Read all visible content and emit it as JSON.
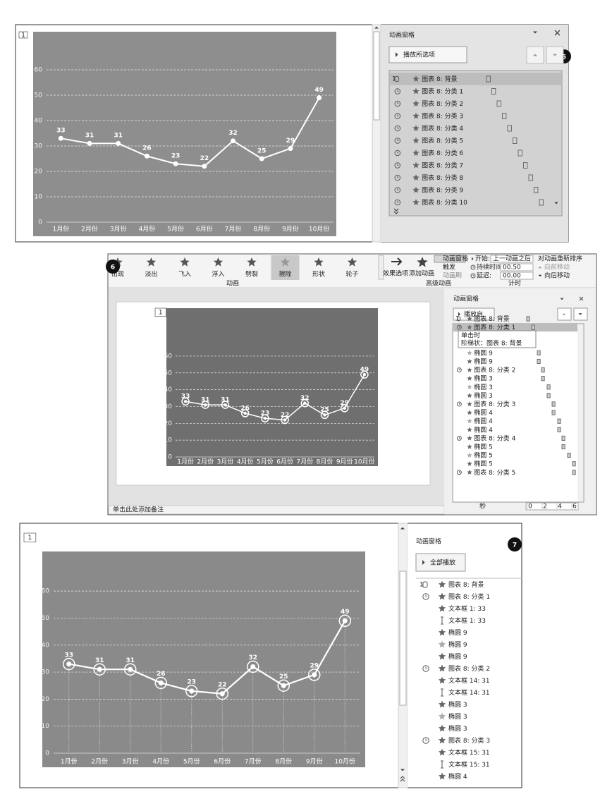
{
  "badges": [
    "5",
    "6",
    "7"
  ],
  "slide_tag": "1",
  "chart": {
    "type": "line",
    "categories": [
      "1月份",
      "2月份",
      "3月份",
      "4月份",
      "5月份",
      "6月份",
      "7月份",
      "8月份",
      "9月份",
      "10月份"
    ],
    "values": [
      33,
      31,
      31,
      26,
      23,
      22,
      32,
      25,
      29,
      49
    ],
    "color": "#ffffff",
    "ylim": [
      0,
      65
    ],
    "yticks": [
      0,
      10,
      20,
      30,
      40,
      50,
      60
    ],
    "grid": true
  },
  "pane5": {
    "title": "动画窗格",
    "play": "播放所选项",
    "order": "1",
    "items": [
      "图表 8: 背景",
      "图表 8: 分类 1",
      "图表 8: 分类 2",
      "图表 8: 分类 3",
      "图表 8: 分类 4",
      "图表 8: 分类 5",
      "图表 8: 分类 6",
      "图表 8: 分类 7",
      "图表 8: 分类 8",
      "图表 8: 分类 9",
      "图表 8: 分类 10"
    ]
  },
  "ribbon": {
    "effects": [
      "出现",
      "淡出",
      "飞入",
      "浮入",
      "劈裂",
      "擦除",
      "形状",
      "轮子"
    ],
    "effect_options": "效果选项",
    "add_animation": "添加动画",
    "anim_pane": "动画窗格",
    "trigger": "触发",
    "painter": "动画刷",
    "start_label": "开始:",
    "start_value": "上一动画之后",
    "duration_label": "持续时间:",
    "duration_value": "00.50",
    "delay_label": "延迟:",
    "delay_value": "00.00",
    "reorder": "对动画重新排序",
    "move_earlier": "向前移动",
    "move_later": "向后移动",
    "groups": [
      "动画",
      "高级动画",
      "计时"
    ]
  },
  "pane6": {
    "title": "动画窗格",
    "play": "播放自",
    "order": "1",
    "items": [
      "图表 8: 背景",
      "图表 8: 分类 1",
      "椭圆 9",
      "椭圆 9",
      "图表 8: 分类 2",
      "椭圆 3",
      "椭圆 3",
      "椭圆 3",
      "图表 8: 分类 3",
      "椭圆 4",
      "椭圆 4",
      "椭圆 4",
      "图表 8: 分类 4",
      "椭圆 5",
      "椭圆 5",
      "椭圆 5",
      "图表 8: 分类 5"
    ],
    "tooltip": [
      "单击时",
      "阶梯状：图表 8: 背景"
    ],
    "time_unit": "秒",
    "time_ticks": [
      0,
      2,
      4,
      6
    ]
  },
  "notes": "单击此处添加备注",
  "pane7": {
    "title": "动画窗格",
    "play": "全部播放",
    "order": "1",
    "items": [
      "图表 8: 背景",
      "图表 8: 分类 1",
      "文本框 1: 33",
      "文本框 1: 33",
      "椭圆 9",
      "椭圆 9",
      "椭圆 9",
      "图表 8: 分类 2",
      "文本框 14: 31",
      "文本框 14: 31",
      "椭圆 3",
      "椭圆 3",
      "椭圆 3",
      "图表 8: 分类 3",
      "文本框 15: 31",
      "文本框 15: 31",
      "椭圆 4"
    ]
  }
}
